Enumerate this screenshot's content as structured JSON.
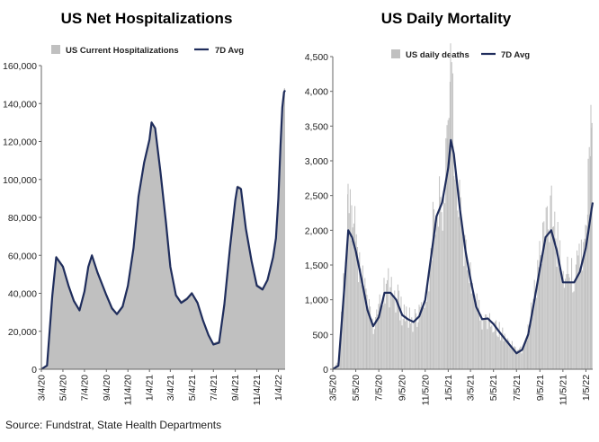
{
  "source": "Source: Fundstrat, State Health Departments",
  "chart_data": [
    {
      "type": "area",
      "title": "US Net Hospitalizations",
      "legend": {
        "placement": "top-left",
        "entries": [
          "US Current Hospitalizations",
          "7D Avg"
        ]
      },
      "x_tick_labels": [
        "3/4/20",
        "5/4/20",
        "7/4/20",
        "9/4/20",
        "11/4/20",
        "1/4/21",
        "3/4/21",
        "5/4/21",
        "7/4/21",
        "9/4/21",
        "11/4/21",
        "1/4/22"
      ],
      "y_tick_labels": [
        "0",
        "20,000",
        "40,000",
        "60,000",
        "80,000",
        "100,000",
        "120,000",
        "140,000",
        "160,000"
      ],
      "ylim": [
        0,
        160000
      ],
      "x_range": [
        "3/4/20",
        "1/23/22"
      ],
      "grid": false,
      "colors": {
        "bars": "#c0c0c0",
        "avg_line": "#1f2d5c"
      },
      "series": [
        {
          "name": "US Current Hospitalizations",
          "kind": "area",
          "x": [
            "3/4/20",
            "3/20/20",
            "4/4/20",
            "4/15/20",
            "5/4/20",
            "5/20/20",
            "6/4/20",
            "6/20/20",
            "7/4/20",
            "7/15/20",
            "7/25/20",
            "8/10/20",
            "9/4/20",
            "9/20/20",
            "10/4/20",
            "10/20/20",
            "11/4/20",
            "11/20/20",
            "12/4/20",
            "12/20/20",
            "1/4/21",
            "1/10/21",
            "1/20/21",
            "2/4/21",
            "2/20/21",
            "3/4/21",
            "3/20/21",
            "4/4/21",
            "4/20/21",
            "5/4/21",
            "5/20/21",
            "6/4/21",
            "6/20/21",
            "7/4/21",
            "7/20/21",
            "8/4/21",
            "8/20/21",
            "9/4/21",
            "9/10/21",
            "9/20/21",
            "10/4/21",
            "10/20/21",
            "11/4/21",
            "11/20/21",
            "12/4/21",
            "12/20/21",
            "12/28/21",
            "1/4/22",
            "1/10/22",
            "1/15/22",
            "1/20/22",
            "1/23/22"
          ],
          "values": [
            0,
            2000,
            40000,
            60000,
            55000,
            45000,
            37000,
            32000,
            42000,
            55000,
            61000,
            52000,
            40000,
            33000,
            30000,
            34000,
            45000,
            65000,
            92000,
            110000,
            122000,
            131000,
            128000,
            105000,
            78000,
            55000,
            40000,
            36000,
            38000,
            41000,
            36000,
            27000,
            19000,
            14000,
            15000,
            35000,
            65000,
            90000,
            97000,
            96000,
            75000,
            58000,
            45000,
            43000,
            48000,
            60000,
            70000,
            92000,
            120000,
            140000,
            148000,
            148000
          ]
        },
        {
          "name": "7D Avg",
          "kind": "line",
          "x": [
            "3/4/20",
            "3/20/20",
            "4/4/20",
            "4/15/20",
            "5/4/20",
            "5/20/20",
            "6/4/20",
            "6/20/20",
            "7/4/20",
            "7/15/20",
            "7/25/20",
            "8/10/20",
            "9/4/20",
            "9/20/20",
            "10/4/20",
            "10/20/20",
            "11/4/20",
            "11/20/20",
            "12/4/20",
            "12/20/20",
            "1/4/21",
            "1/10/21",
            "1/20/21",
            "2/4/21",
            "2/20/21",
            "3/4/21",
            "3/20/21",
            "4/4/21",
            "4/20/21",
            "5/4/21",
            "5/20/21",
            "6/4/21",
            "6/20/21",
            "7/4/21",
            "7/20/21",
            "8/4/21",
            "8/20/21",
            "9/4/21",
            "9/10/21",
            "9/20/21",
            "10/4/21",
            "10/20/21",
            "11/4/21",
            "11/20/21",
            "12/4/21",
            "12/20/21",
            "12/28/21",
            "1/4/22",
            "1/10/22",
            "1/15/22",
            "1/20/22",
            "1/23/22"
          ],
          "values": [
            0,
            2000,
            39000,
            59000,
            54000,
            44000,
            36000,
            31000,
            41000,
            54000,
            60000,
            51000,
            39000,
            32000,
            29000,
            33000,
            44000,
            64000,
            91000,
            109000,
            121000,
            130000,
            127000,
            104000,
            77000,
            54000,
            39000,
            35000,
            37000,
            40000,
            35000,
            26000,
            18000,
            13000,
            14000,
            34000,
            64000,
            89000,
            96000,
            95000,
            74000,
            57000,
            44000,
            42000,
            47000,
            59000,
            69000,
            90000,
            118000,
            138000,
            146000,
            147000
          ]
        }
      ]
    },
    {
      "type": "bar",
      "title": "US Daily Mortality",
      "legend": {
        "placement": "top-left",
        "entries": [
          "US daily deaths",
          "7D Avg"
        ]
      },
      "x_tick_labels": [
        "3/5/20",
        "5/5/20",
        "7/5/20",
        "9/5/20",
        "11/5/20",
        "1/5/21",
        "3/5/21",
        "5/5/21",
        "7/5/21",
        "9/5/21",
        "11/5/21",
        "1/5/22"
      ],
      "y_tick_labels": [
        "0",
        "500",
        "1,000",
        "1,500",
        "2,000",
        "2,500",
        "3,000",
        "3,500",
        "4,000",
        "4,500"
      ],
      "ylim": [
        0,
        4500
      ],
      "x_range": [
        "3/5/20",
        "1/23/22"
      ],
      "grid": false,
      "colors": {
        "bars": "#c0c0c0",
        "avg_line": "#1f2d5c"
      },
      "series": [
        {
          "name": "US daily deaths",
          "kind": "bars",
          "x": [
            "3/5/20",
            "3/20/20",
            "4/5/20",
            "4/15/20",
            "4/25/20",
            "5/5/20",
            "5/20/20",
            "6/5/20",
            "6/20/20",
            "7/5/20",
            "7/20/20",
            "8/5/20",
            "8/20/20",
            "9/5/20",
            "9/20/20",
            "10/5/20",
            "10/20/20",
            "11/5/20",
            "11/20/20",
            "12/5/20",
            "12/20/20",
            "1/5/21",
            "1/12/21",
            "1/20/21",
            "2/5/21",
            "2/20/21",
            "3/5/21",
            "3/20/21",
            "4/5/21",
            "4/20/21",
            "5/5/21",
            "5/20/21",
            "6/5/21",
            "6/20/21",
            "7/5/21",
            "7/20/21",
            "8/5/21",
            "8/20/21",
            "9/5/21",
            "9/20/21",
            "10/5/21",
            "10/20/21",
            "11/5/21",
            "11/20/21",
            "12/5/21",
            "12/20/21",
            "1/5/22",
            "1/12/22",
            "1/20/22",
            "1/23/22"
          ],
          "values": [
            0,
            100,
            1500,
            2600,
            2300,
            1800,
            1300,
            900,
            650,
            800,
            1200,
            1150,
            1050,
            800,
            750,
            700,
            800,
            1050,
            1700,
            2400,
            2600,
            3300,
            4300,
            3200,
            2600,
            1700,
            1400,
            950,
            700,
            750,
            650,
            550,
            450,
            350,
            250,
            300,
            550,
            1000,
            1500,
            2000,
            2400,
            1800,
            1300,
            1400,
            1300,
            1500,
            1900,
            2600,
            3600,
            2700
          ]
        },
        {
          "name": "7D Avg",
          "kind": "line",
          "x": [
            "3/5/20",
            "3/20/20",
            "4/5/20",
            "4/15/20",
            "4/25/20",
            "5/5/20",
            "5/20/20",
            "6/5/20",
            "6/20/20",
            "7/5/20",
            "7/20/20",
            "8/5/20",
            "8/20/20",
            "9/5/20",
            "9/20/20",
            "10/5/20",
            "10/20/20",
            "11/5/20",
            "11/20/20",
            "12/5/20",
            "12/20/20",
            "1/5/21",
            "1/12/21",
            "1/20/21",
            "2/5/21",
            "2/20/21",
            "3/5/21",
            "3/20/21",
            "4/5/21",
            "4/20/21",
            "5/5/21",
            "5/20/21",
            "6/5/21",
            "6/20/21",
            "7/5/21",
            "7/20/21",
            "8/5/21",
            "8/20/21",
            "9/5/21",
            "9/20/21",
            "10/5/21",
            "10/20/21",
            "11/5/21",
            "11/20/21",
            "12/5/21",
            "12/20/21",
            "1/5/22",
            "1/12/22",
            "1/20/22",
            "1/23/22"
          ],
          "values": [
            0,
            50,
            1200,
            2000,
            1900,
            1700,
            1300,
            850,
            620,
            750,
            1100,
            1100,
            1000,
            780,
            720,
            680,
            760,
            1000,
            1600,
            2200,
            2400,
            2900,
            3300,
            3100,
            2300,
            1700,
            1300,
            900,
            720,
            730,
            650,
            540,
            430,
            330,
            230,
            280,
            500,
            950,
            1450,
            1900,
            2000,
            1700,
            1250,
            1250,
            1250,
            1400,
            1750,
            2000,
            2300,
            2400
          ]
        }
      ]
    }
  ]
}
